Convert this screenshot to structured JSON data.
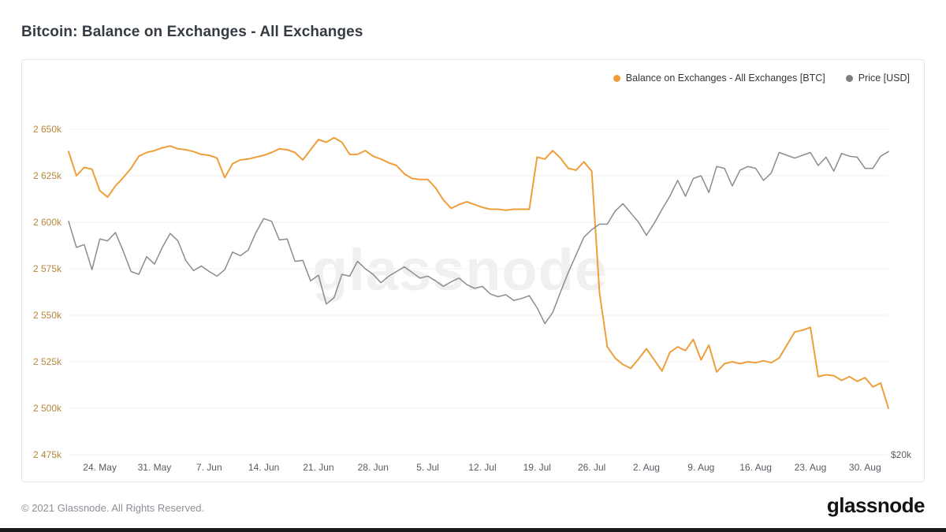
{
  "page": {
    "title": "Bitcoin: Balance on Exchanges - All Exchanges"
  },
  "legend": [
    {
      "label": "Balance on Exchanges - All Exchanges [BTC]",
      "color": "#ee9f3c"
    },
    {
      "label": "Price [USD]",
      "color": "#7f7f7f"
    }
  ],
  "watermark": "glassnode",
  "footer": {
    "copyright": "© 2021 Glassnode. All Rights Reserved.",
    "brand": "glassnode"
  },
  "chart_data": {
    "type": "line",
    "title": "Bitcoin: Balance on Exchanges - All Exchanges",
    "start_date": "2021-05-20",
    "end_date": "2021-09-02",
    "grid": "horizontal-only",
    "legend_position": "top-right",
    "x_ticks": [
      {
        "label": "24. May",
        "day": 4
      },
      {
        "label": "31. May",
        "day": 11
      },
      {
        "label": "7. Jun",
        "day": 18
      },
      {
        "label": "14. Jun",
        "day": 25
      },
      {
        "label": "21. Jun",
        "day": 32
      },
      {
        "label": "28. Jun",
        "day": 39
      },
      {
        "label": "5. Jul",
        "day": 46
      },
      {
        "label": "12. Jul",
        "day": 53
      },
      {
        "label": "19. Jul",
        "day": 60
      },
      {
        "label": "26. Jul",
        "day": 67
      },
      {
        "label": "2. Aug",
        "day": 74
      },
      {
        "label": "9. Aug",
        "day": 81
      },
      {
        "label": "16. Aug",
        "day": 88
      },
      {
        "label": "23. Aug",
        "day": 95
      },
      {
        "label": "30. Aug",
        "day": 102
      }
    ],
    "left_axis": {
      "unit": "BTC (thousands)",
      "min": 2475,
      "max": 2650,
      "step": 25,
      "tick_labels": [
        "2 650k",
        "2 625k",
        "2 600k",
        "2 575k",
        "2 550k",
        "2 525k",
        "2 500k",
        "2 475k"
      ],
      "label_color": "#b5873c"
    },
    "right_axis": {
      "unit": "USD (thousands)",
      "visible_tick_label": "$20k",
      "tick_value": 20,
      "usd_k_per_gridline": 5,
      "label_color": "#5a5f66"
    },
    "series": [
      {
        "name": "Balance on Exchanges - All Exchanges [BTC]",
        "color": "#ee9f3c",
        "axis": "left",
        "stroke_width": 2,
        "values": [
          2638,
          2625,
          2629.5,
          2628.5,
          2617,
          2613.5,
          2619.5,
          2624,
          2629,
          2635.5,
          2637.5,
          2638.5,
          2640,
          2641,
          2639.5,
          2639,
          2638,
          2636.5,
          2636,
          2634.5,
          2624,
          2631.5,
          2633.5,
          2634,
          2635,
          2636,
          2637.5,
          2639.5,
          2639,
          2637.5,
          2633.5,
          2639,
          2644.5,
          2643,
          2645.5,
          2643,
          2636.5,
          2636.5,
          2638.5,
          2635.5,
          2634,
          2632,
          2630.5,
          2626,
          2623.5,
          2623,
          2623,
          2618.5,
          2612,
          2607.5,
          2609.5,
          2611,
          2609.5,
          2608,
          2607,
          2607,
          2606.5,
          2607,
          2607,
          2607,
          2635,
          2634,
          2638.5,
          2634.5,
          2629,
          2628,
          2632.5,
          2627.5,
          2562,
          2533,
          2527,
          2523.5,
          2521.5,
          2526.5,
          2532,
          2526,
          2520,
          2530,
          2533,
          2531,
          2537,
          2526,
          2534,
          2519.5,
          2524,
          2525,
          2524,
          2525,
          2524.5,
          2525.5,
          2524.5,
          2527,
          2534,
          2541,
          2542,
          2543.5,
          2517,
          2518,
          2517.5,
          2515,
          2517,
          2514.5,
          2516.5,
          2511.5,
          2513.5,
          2500
        ]
      },
      {
        "name": "Price [USD]",
        "color": "#8c8c8c",
        "axis": "right",
        "stroke_width": 1.5,
        "values": [
          45.1,
          42.3,
          42.6,
          39.9,
          43.2,
          43.0,
          43.9,
          41.9,
          39.7,
          39.4,
          41.3,
          40.5,
          42.3,
          43.8,
          43.0,
          40.9,
          39.8,
          40.3,
          39.7,
          39.2,
          39.9,
          41.8,
          41.4,
          42.0,
          43.9,
          45.4,
          45.1,
          43.1,
          43.2,
          40.8,
          40.9,
          38.7,
          39.3,
          36.2,
          36.9,
          39.4,
          39.2,
          40.8,
          40.0,
          39.4,
          38.5,
          39.2,
          39.7,
          40.2,
          39.6,
          39.0,
          39.2,
          38.7,
          38.1,
          38.6,
          39.0,
          38.3,
          37.9,
          38.1,
          37.3,
          37.0,
          37.2,
          36.6,
          36.8,
          37.1,
          35.8,
          34.1,
          35.3,
          37.5,
          39.6,
          41.5,
          43.4,
          44.2,
          44.8,
          44.8,
          46.2,
          47.0,
          46.0,
          45.0,
          43.6,
          44.9,
          46.4,
          47.8,
          49.5,
          47.8,
          49.7,
          50.0,
          48.2,
          51.0,
          50.8,
          48.9,
          50.6,
          51.0,
          50.8,
          49.5,
          50.3,
          52.5,
          52.2,
          51.9,
          52.2,
          52.5,
          51.1,
          52.0,
          50.5,
          52.4,
          52.1,
          52.0,
          50.8,
          50.8,
          52.1,
          52.6
        ]
      }
    ]
  }
}
